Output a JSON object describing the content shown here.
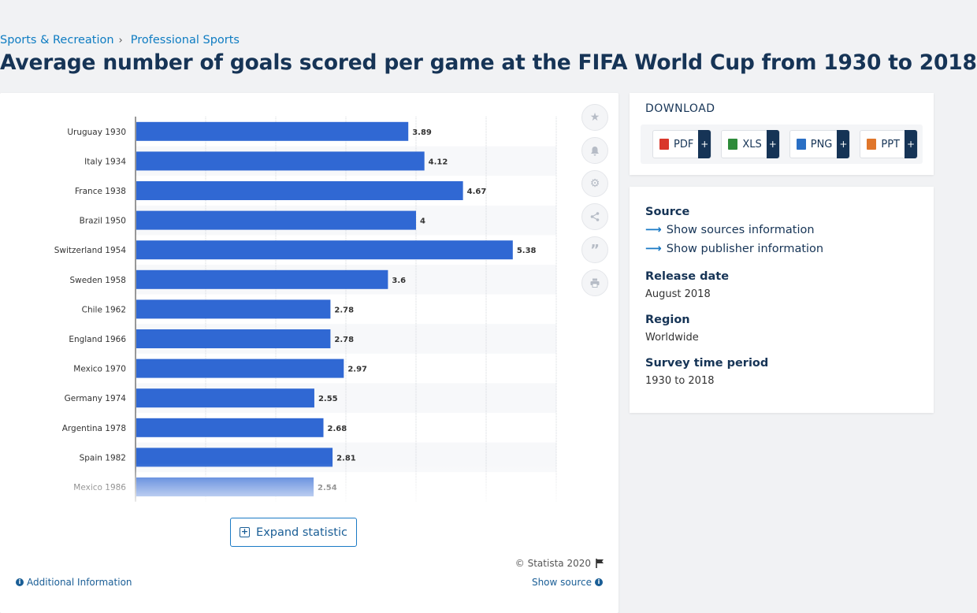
{
  "breadcrumb": {
    "items": [
      "Sports & Recreation",
      "Professional Sports"
    ],
    "separator": "›"
  },
  "page_title": "Average number of goals scored per game at the FIFA World Cup from 1930 to 2018",
  "chart_card": {
    "expand_label": "Expand statistic",
    "copyright": "© Statista 2020",
    "additional_info": "Additional Information",
    "show_source": "Show source"
  },
  "tools": [
    "star-icon",
    "bell-icon",
    "gear-icon",
    "share-icon",
    "quote-icon",
    "print-icon"
  ],
  "download": {
    "title": "DOWNLOAD",
    "buttons": [
      {
        "label": "PDF",
        "color": "#d9372b"
      },
      {
        "label": "XLS",
        "color": "#2e8b3a"
      },
      {
        "label": "PNG",
        "color": "#2a6fc4"
      },
      {
        "label": "PPT",
        "color": "#e0762b"
      }
    ],
    "plus": "+"
  },
  "source_panel": {
    "source_label": "Source",
    "show_sources": "Show sources information",
    "show_publisher": "Show publisher information",
    "release_label": "Release date",
    "release_value": "August 2018",
    "region_label": "Region",
    "region_value": "Worldwide",
    "period_label": "Survey time period",
    "period_value": "1930 to 2018"
  },
  "colors": {
    "bar": "#3068d3",
    "accent": "#1a7ac5",
    "title": "#163456"
  },
  "chart_data": {
    "type": "bar",
    "orientation": "horizontal",
    "categories": [
      "Uruguay 1930",
      "Italy 1934",
      "France 1938",
      "Brazil 1950",
      "Switzerland 1954",
      "Sweden 1958",
      "Chile 1962",
      "England 1966",
      "Mexico 1970",
      "Germany 1974",
      "Argentina 1978",
      "Spain 1982",
      "Mexico 1986"
    ],
    "values": [
      3.89,
      4.12,
      4.67,
      4,
      5.38,
      3.6,
      2.78,
      2.78,
      2.97,
      2.55,
      2.68,
      2.81,
      2.54
    ],
    "xlim": [
      0,
      6
    ],
    "grid": true
  }
}
